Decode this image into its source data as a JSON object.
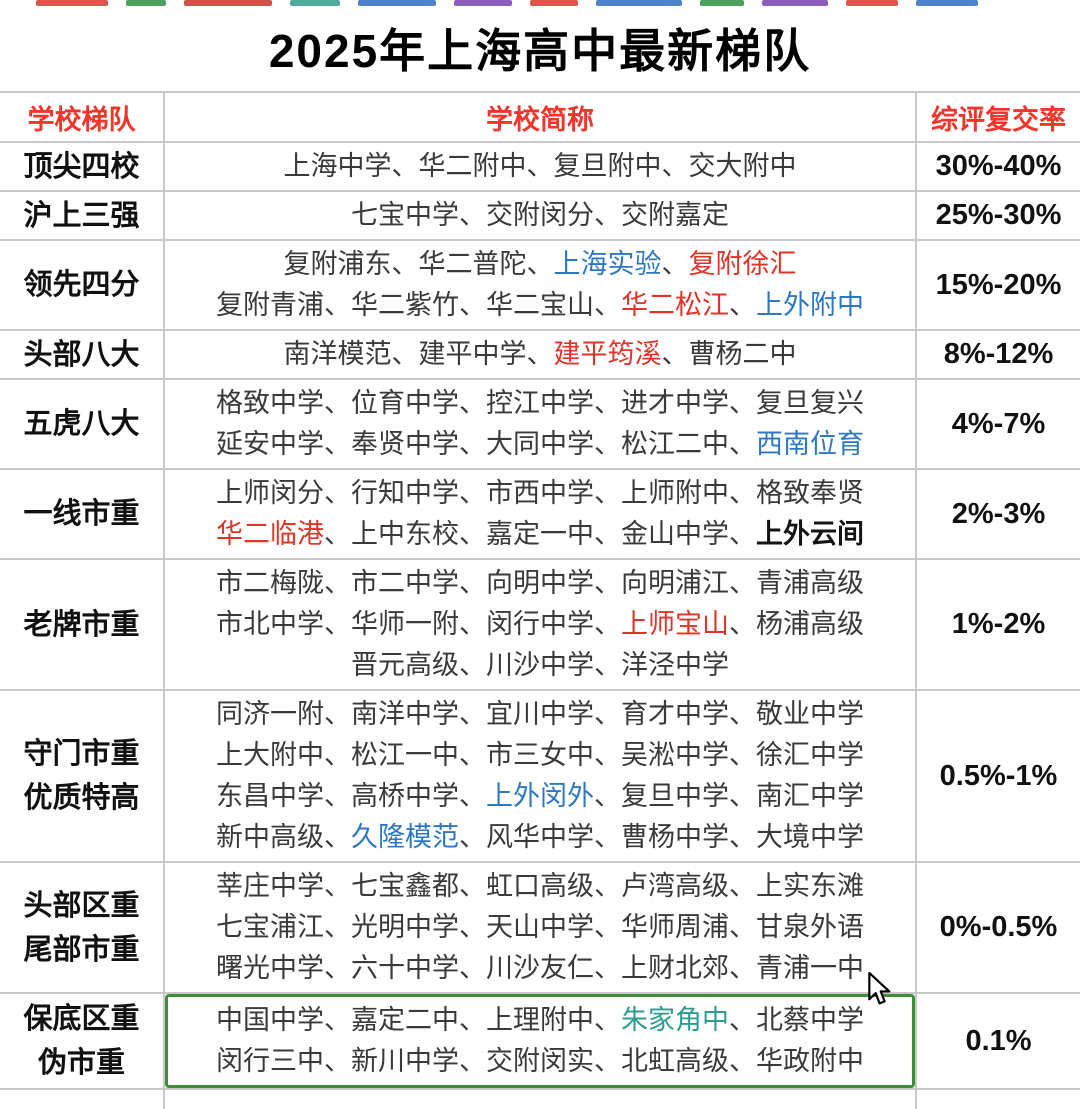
{
  "title": "2025年上海高中最新梯队",
  "header": {
    "tier": "学校梯队",
    "schools": "学校简称",
    "rate": "综评复交率"
  },
  "colors": {
    "dark": "#3a3a3a",
    "red": "#e03428",
    "blue": "#2e78c2",
    "teal": "#2f9d8e",
    "bold_black": "#141414",
    "header_red": "#f1352b",
    "grid": "#c9c9c9",
    "highlight_border": "#3e8e38"
  },
  "rows": [
    {
      "tier": [
        "顶尖四校"
      ],
      "rate": "30%-40%",
      "lines": [
        [
          [
            "上海中学、华二附中、复旦附中、交大附中",
            "dark"
          ]
        ]
      ]
    },
    {
      "tier": [
        "沪上三强"
      ],
      "rate": "25%-30%",
      "lines": [
        [
          [
            "七宝中学、交附闵分、交附嘉定",
            "dark"
          ]
        ]
      ]
    },
    {
      "tier": [
        "领先四分"
      ],
      "rate": "15%-20%",
      "lines": [
        [
          [
            "复附浦东、华二普陀、",
            "dark"
          ],
          [
            "上海实验",
            "blue"
          ],
          [
            "、",
            "dark"
          ],
          [
            "复附徐汇",
            "red"
          ]
        ],
        [
          [
            "复附青浦、华二紫竹、华二宝山、",
            "dark"
          ],
          [
            "华二松江",
            "red"
          ],
          [
            "、",
            "dark"
          ],
          [
            "上外附中",
            "blue"
          ]
        ]
      ]
    },
    {
      "tier": [
        "头部八大"
      ],
      "rate": "8%-12%",
      "lines": [
        [
          [
            "南洋模范、建平中学、",
            "dark"
          ],
          [
            "建平筠溪",
            "red"
          ],
          [
            "、曹杨二中",
            "dark"
          ]
        ]
      ]
    },
    {
      "tier": [
        "五虎八大"
      ],
      "rate": "4%-7%",
      "lines": [
        [
          [
            "格致中学、位育中学、控江中学、进才中学、复旦复兴",
            "dark"
          ]
        ],
        [
          [
            "延安中学、奉贤中学、大同中学、松江二中、",
            "dark"
          ],
          [
            "西南位育",
            "blue"
          ]
        ]
      ]
    },
    {
      "tier": [
        "一线市重"
      ],
      "rate": "2%-3%",
      "lines": [
        [
          [
            "上师闵分、行知中学、市西中学、上师附中、格致奉贤",
            "dark"
          ]
        ],
        [
          [
            "华二临港",
            "red"
          ],
          [
            "、上中东校、嘉定一中、金山中学、",
            "dark"
          ],
          [
            "上外云间",
            "bold"
          ]
        ]
      ]
    },
    {
      "tier": [
        "老牌市重"
      ],
      "rate": "1%-2%",
      "lines": [
        [
          [
            "市二梅陇、市二中学、向明中学、向明浦江、青浦高级",
            "dark"
          ]
        ],
        [
          [
            "市北中学、华师一附、闵行中学、",
            "dark"
          ],
          [
            "上师宝山",
            "red"
          ],
          [
            "、杨浦高级",
            "dark"
          ]
        ],
        [
          [
            "晋元高级、川沙中学、洋泾中学",
            "dark"
          ]
        ]
      ]
    },
    {
      "tier": [
        "守门市重",
        "优质特高"
      ],
      "rate": "0.5%-1%",
      "lines": [
        [
          [
            "同济一附、南洋中学、宜川中学、育才中学、敬业中学",
            "dark"
          ]
        ],
        [
          [
            "上大附中、松江一中、市三女中、吴淞中学、徐汇中学",
            "dark"
          ]
        ],
        [
          [
            "东昌中学、高桥中学、",
            "dark"
          ],
          [
            "上外闵外",
            "blue"
          ],
          [
            "、复旦中学、南汇中学",
            "dark"
          ]
        ],
        [
          [
            "新中高级、",
            "dark"
          ],
          [
            "久隆模范",
            "blue"
          ],
          [
            "、风华中学、曹杨中学、大境中学",
            "dark"
          ]
        ]
      ]
    },
    {
      "tier": [
        "头部区重",
        "尾部市重"
      ],
      "rate": "0%-0.5%",
      "lines": [
        [
          [
            "莘庄中学、七宝鑫都、虹口高级、卢湾高级、上实东滩",
            "dark"
          ]
        ],
        [
          [
            "七宝浦江、光明中学、天山中学、华师周浦、甘泉外语",
            "dark"
          ]
        ],
        [
          [
            "曙光中学、六十中学、川沙友仁、上财北郊、青浦一中",
            "dark"
          ]
        ]
      ]
    },
    {
      "tier": [
        "保底区重",
        "伪市重"
      ],
      "rate": "0.1%",
      "highlight": true,
      "lines": [
        [
          [
            "中国中学、嘉定二中、上理附中、",
            "dark"
          ],
          [
            "朱家角中",
            "teal"
          ],
          [
            "、北蔡中学",
            "dark"
          ]
        ],
        [
          [
            "闵行三中、新川中学、交附闵实、北虹高级、华政附中",
            "dark"
          ]
        ]
      ]
    }
  ]
}
